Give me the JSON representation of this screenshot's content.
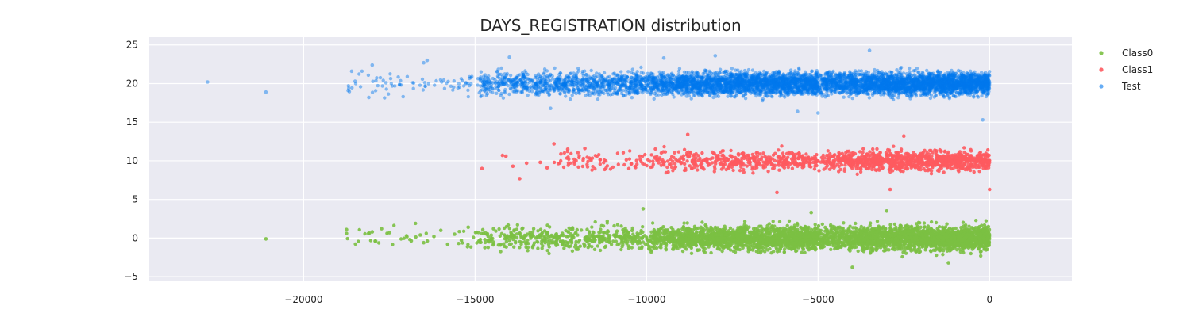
{
  "chart_data": {
    "type": "scatter",
    "title": "DAYS_REGISTRATION distribution",
    "xlabel": "",
    "ylabel": "",
    "xlim": [
      -24500,
      2400
    ],
    "ylim": [
      -5.5,
      26
    ],
    "x_ticks": [
      -20000,
      -15000,
      -10000,
      -5000,
      0
    ],
    "x_tick_labels": [
      "−20000",
      "−15000",
      "−10000",
      "−5000",
      "0"
    ],
    "y_ticks": [
      -5,
      0,
      5,
      10,
      15,
      20,
      25
    ],
    "y_tick_labels": [
      "−5",
      "0",
      "5",
      "10",
      "15",
      "20",
      "25"
    ],
    "grid": true,
    "legend_position": "top-right-outside",
    "series": [
      {
        "name": "Class0",
        "color": "#7bc043",
        "opacity": 0.9,
        "y_center": 0,
        "y_spread": 1.1,
        "density_bins": [
          {
            "x_range": [
              -5000,
              0
            ],
            "count": 1800
          },
          {
            "x_range": [
              -10000,
              -5000
            ],
            "count": 1500
          },
          {
            "x_range": [
              -15000,
              -10000
            ],
            "count": 420
          },
          {
            "x_range": [
              -18800,
              -15000
            ],
            "count": 30
          }
        ],
        "points": [
          [
            -21100,
            -0.1
          ],
          [
            -18750,
            1.1
          ],
          [
            -18750,
            0.6
          ],
          [
            -18000,
            0.8
          ],
          [
            -17900,
            -0.4
          ],
          [
            -17500,
            0.7
          ],
          [
            -17000,
            0.3
          ],
          [
            -16900,
            -0.2
          ],
          [
            -16600,
            0.4
          ],
          [
            -16500,
            -0.6
          ],
          [
            -16200,
            0.2
          ],
          [
            -16000,
            1.0
          ],
          [
            -15800,
            -0.8
          ],
          [
            -15600,
            0.5
          ],
          [
            -15400,
            -0.3
          ],
          [
            -15200,
            1.4
          ],
          [
            -10100,
            3.8
          ],
          [
            -5200,
            3.3
          ],
          [
            -3000,
            3.5
          ],
          [
            -1200,
            -3.2
          ],
          [
            -4000,
            -3.8
          ]
        ]
      },
      {
        "name": "Class1",
        "color": "#fe5a5f",
        "opacity": 0.9,
        "y_center": 10,
        "y_spread": 0.9,
        "density_bins": [
          {
            "x_range": [
              -5000,
              0
            ],
            "count": 900
          },
          {
            "x_range": [
              -10000,
              -5000
            ],
            "count": 420
          },
          {
            "x_range": [
              -12800,
              -10000
            ],
            "count": 70
          }
        ],
        "points": [
          [
            -14800,
            9.0
          ],
          [
            -14200,
            10.7
          ],
          [
            -14100,
            10.6
          ],
          [
            -13900,
            9.3
          ],
          [
            -13700,
            7.7
          ],
          [
            -13500,
            9.7
          ],
          [
            -13100,
            9.8
          ],
          [
            -12900,
            9.1
          ],
          [
            -12700,
            12.2
          ],
          [
            -12500,
            10.9
          ],
          [
            -12300,
            11.5
          ],
          [
            -12100,
            9.6
          ],
          [
            -11800,
            11.6
          ],
          [
            -8800,
            13.4
          ],
          [
            -2500,
            13.2
          ],
          [
            -2900,
            6.3
          ],
          [
            0,
            6.3
          ],
          [
            -6200,
            5.9
          ]
        ]
      },
      {
        "name": "Test",
        "color": "#0077ee",
        "opacity": 0.45,
        "y_center": 20,
        "y_spread": 1.05,
        "density_bins": [
          {
            "x_range": [
              -5000,
              0
            ],
            "count": 2600
          },
          {
            "x_range": [
              -10000,
              -5000
            ],
            "count": 2200
          },
          {
            "x_range": [
              -15000,
              -10000
            ],
            "count": 900
          },
          {
            "x_range": [
              -18800,
              -15000
            ],
            "count": 70
          }
        ],
        "points": [
          [
            -22800,
            20.2
          ],
          [
            -21100,
            18.9
          ],
          [
            -18700,
            19.1
          ],
          [
            -18600,
            21.6
          ],
          [
            -18500,
            20.3
          ],
          [
            -18100,
            18.2
          ],
          [
            -18000,
            22.4
          ],
          [
            -17600,
            20.1
          ],
          [
            -17100,
            18.3
          ],
          [
            -17200,
            19.9
          ],
          [
            -16500,
            22.7
          ],
          [
            -16400,
            23.0
          ],
          [
            -14000,
            23.4
          ],
          [
            -9500,
            23.3
          ],
          [
            -3500,
            24.3
          ],
          [
            -5600,
            16.4
          ],
          [
            -5000,
            16.2
          ],
          [
            -200,
            15.3
          ],
          [
            -8000,
            23.6
          ],
          [
            -12800,
            16.8
          ]
        ]
      }
    ]
  }
}
